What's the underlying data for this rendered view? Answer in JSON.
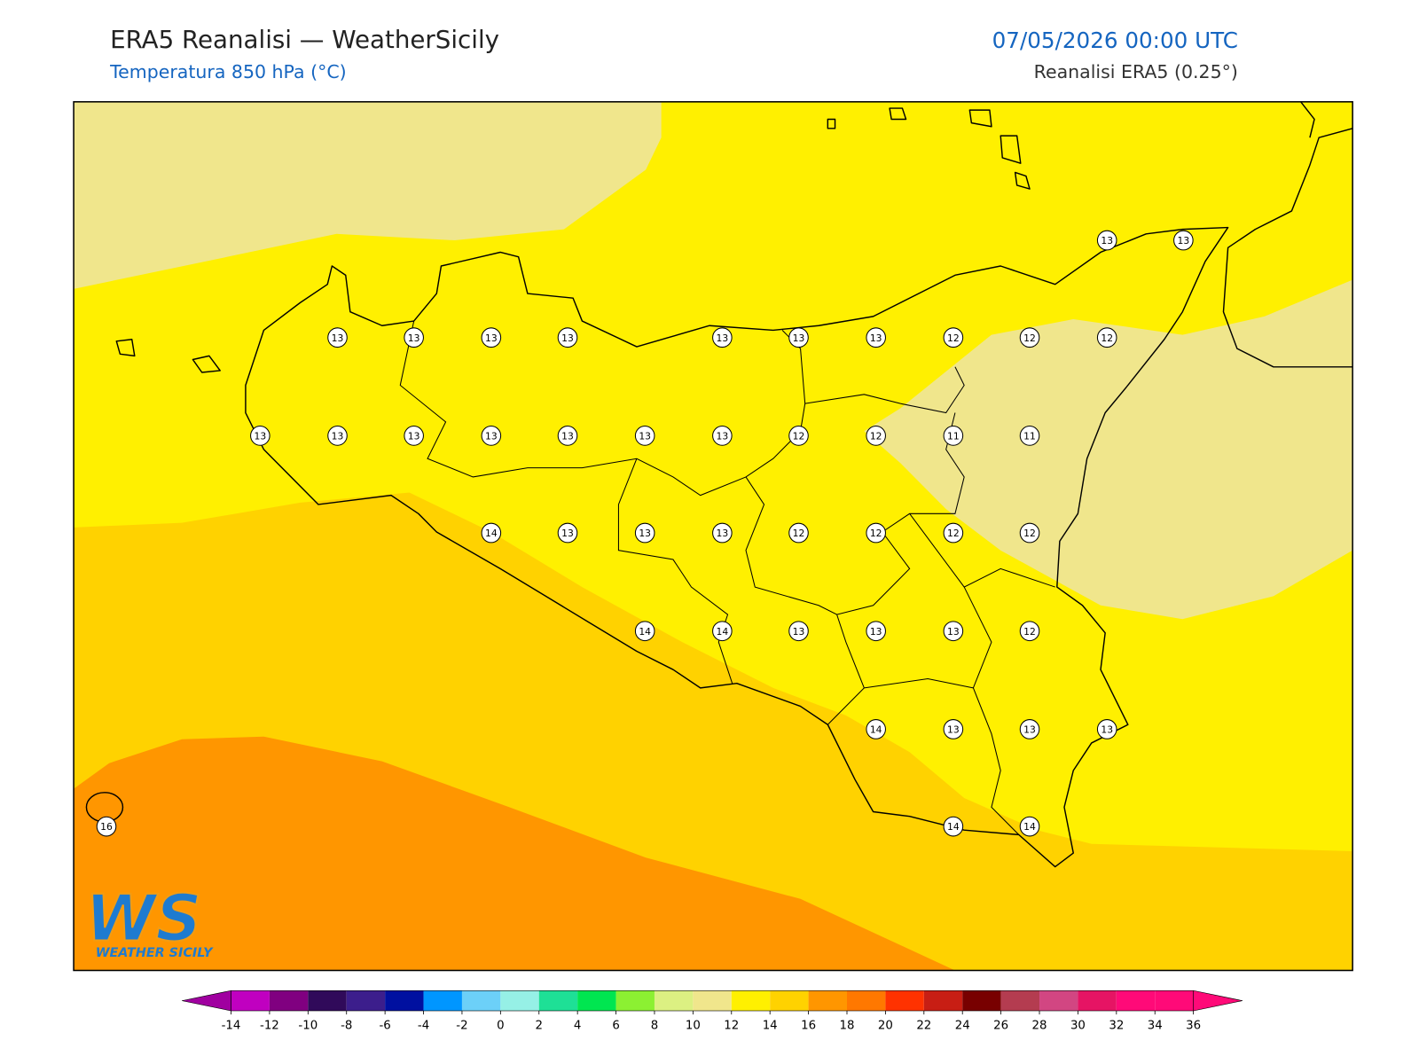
{
  "header": {
    "title": "ERA5 Reanalisi — WeatherSicily",
    "subtitle": "Temperatura 850 hPa (°C)",
    "valid_time": "07/05/2026 00:00 UTC",
    "source": "Reanalisi ERA5 (0.25°)"
  },
  "map": {
    "station_values": [
      13,
      13,
      13,
      13,
      13,
      13,
      13,
      13,
      13,
      12,
      12,
      12,
      13,
      13,
      13,
      13,
      13,
      13,
      13,
      12,
      12,
      11,
      11,
      14,
      13,
      13,
      13,
      12,
      12,
      12,
      12,
      14,
      14,
      13,
      13,
      13,
      12,
      14,
      13,
      13,
      13,
      16,
      14,
      14
    ]
  },
  "colorbar": {
    "ticks": [
      -14,
      -12,
      -10,
      -8,
      -6,
      -4,
      -2,
      0,
      2,
      4,
      6,
      8,
      10,
      12,
      14,
      16,
      18,
      20,
      22,
      24,
      26,
      28,
      30,
      32,
      34,
      36
    ],
    "colors": [
      "#c000c0",
      "#800080",
      "#300a5a",
      "#3c1e8c",
      "#0010a0",
      "#0096ff",
      "#6cd0f8",
      "#96f0e6",
      "#1ee096",
      "#00e650",
      "#8cf032",
      "#dcf082",
      "#f0e68c",
      "#fff000",
      "#ffd200",
      "#ff9600",
      "#ff7800",
      "#ff3200",
      "#c81e14",
      "#780000",
      "#b43c50",
      "#d24682",
      "#e61464",
      "#ff0a78",
      "#ff0a78"
    ],
    "under": "#a000a0",
    "over": "#ff0a78"
  },
  "logo": {
    "mark": "WS",
    "name": "WEATHER SICILY"
  }
}
